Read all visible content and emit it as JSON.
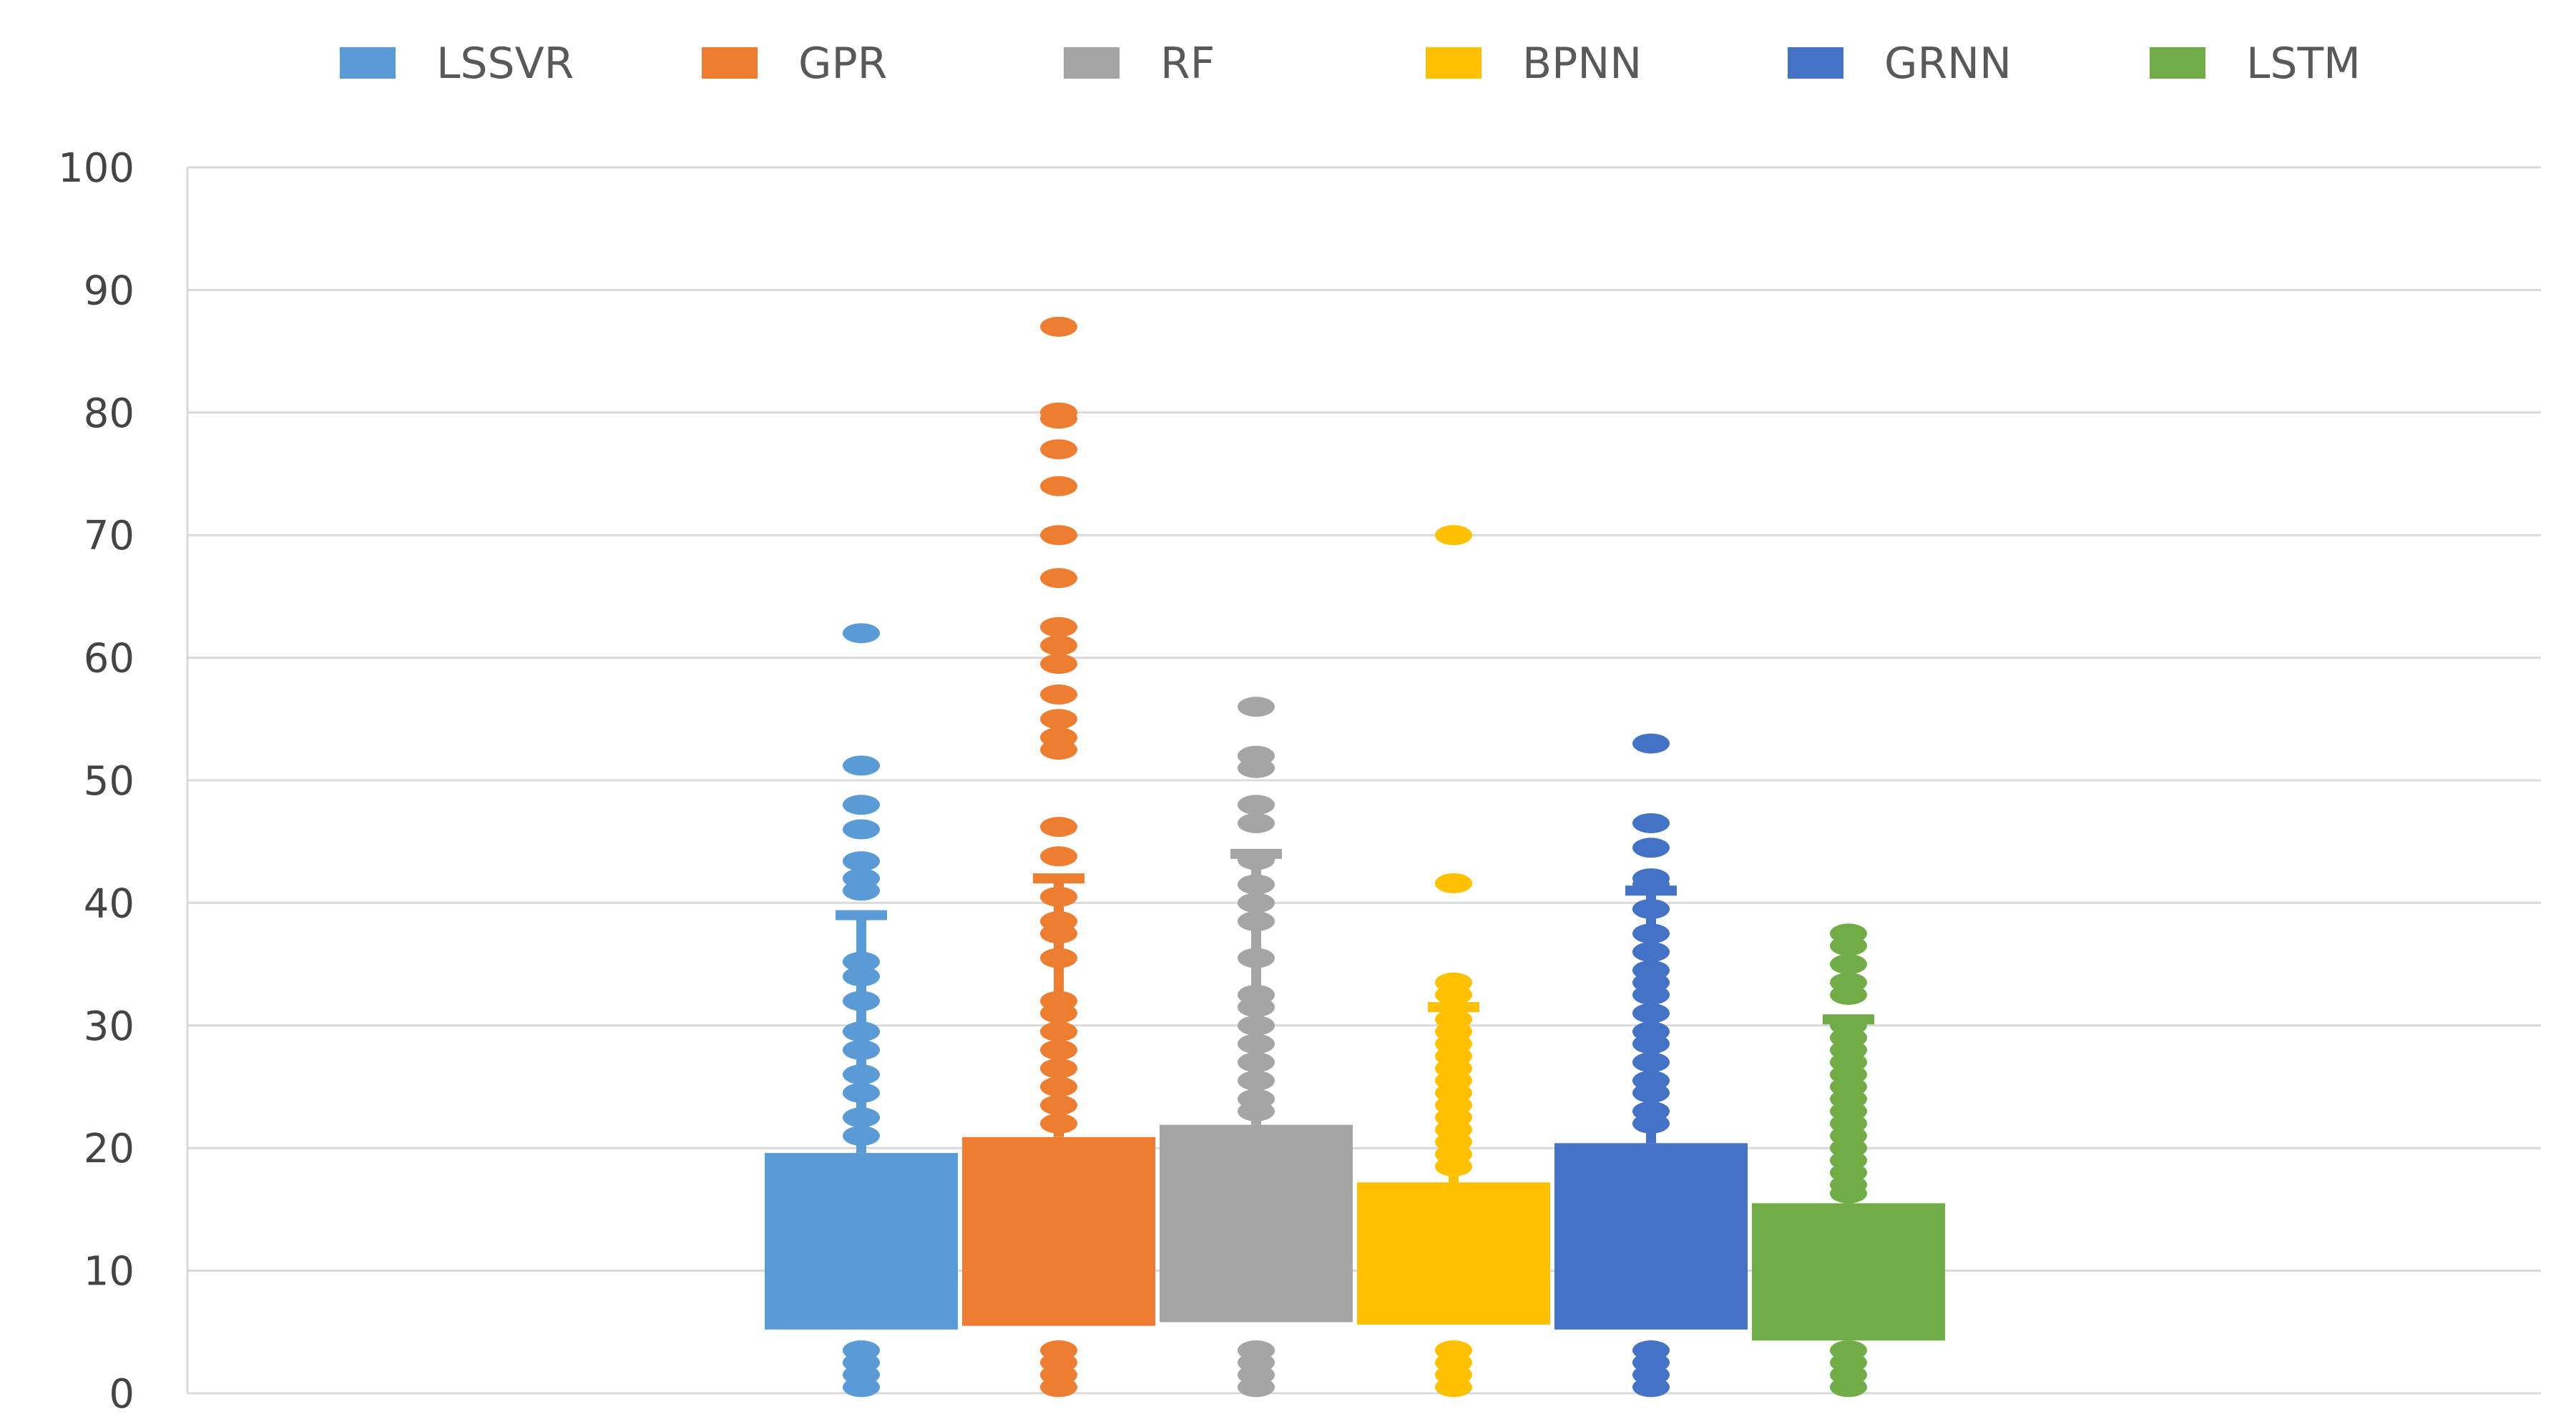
{
  "chart_data": {
    "type": "box",
    "title": "",
    "xlabel": "",
    "ylabel": "",
    "ylim": [
      0,
      100
    ],
    "yticks": [
      0,
      10,
      20,
      30,
      40,
      50,
      60,
      70,
      80,
      90,
      100
    ],
    "yticks_text": [
      "0",
      "10",
      "20",
      "30",
      "40",
      "50",
      "60",
      "70",
      "80",
      "90",
      "100"
    ],
    "grid": true,
    "legend_position": "top",
    "series": [
      {
        "name": "LSSVR",
        "color": "#5B9BD5",
        "q1": 5.2,
        "q3": 19.6,
        "whisker_high": 39,
        "outliers": [
          62,
          51.2,
          48,
          46,
          43.4,
          42,
          41,
          35.2,
          34,
          32,
          29.5,
          28,
          26,
          24.5,
          22.5,
          21,
          3.5,
          2.5,
          1.5,
          0.5
        ]
      },
      {
        "name": "GPR",
        "color": "#ED7D31",
        "q1": 5.5,
        "q3": 20.9,
        "whisker_high": 42,
        "outliers": [
          87,
          80,
          79.5,
          77,
          74,
          70,
          66.5,
          62.5,
          61,
          59.5,
          57,
          55,
          53.5,
          52.5,
          46.2,
          43.8,
          40.5,
          38.5,
          37.5,
          35.5,
          32,
          31,
          29.5,
          28,
          26.5,
          25,
          23.5,
          22,
          3.5,
          2.5,
          1.5,
          0.5
        ]
      },
      {
        "name": "RF",
        "color": "#A5A5A5",
        "q1": 5.8,
        "q3": 21.9,
        "whisker_high": 44,
        "outliers": [
          56,
          52,
          51,
          48,
          46.5,
          43.5,
          41.5,
          40,
          38.5,
          35.5,
          32.5,
          31.5,
          30,
          28.5,
          27,
          25.5,
          24,
          23,
          3.5,
          2.5,
          1.5,
          0.5
        ]
      },
      {
        "name": "BPNN",
        "color": "#FFC000",
        "q1": 5.6,
        "q3": 17.2,
        "whisker_high": 31.5,
        "outliers": [
          70,
          41.6,
          33.5,
          32.5,
          30.5,
          29.5,
          28.5,
          27.5,
          26.5,
          25.5,
          24.5,
          23.5,
          22.5,
          21.5,
          20.5,
          19.5,
          18.5,
          3.5,
          2.5,
          1.5,
          0.5
        ]
      },
      {
        "name": "GRNN",
        "color": "#4472C4",
        "q1": 5.2,
        "q3": 20.4,
        "whisker_high": 41,
        "outliers": [
          53,
          46.5,
          44.5,
          42,
          41.5,
          39.5,
          37.5,
          36,
          34.5,
          33.5,
          32.5,
          31,
          29.5,
          28.5,
          27,
          25.5,
          24.5,
          23,
          22,
          3.5,
          2.5,
          1.5,
          0.5
        ]
      },
      {
        "name": "LSTM",
        "color": "#70AD47",
        "q1": 4.3,
        "q3": 15.5,
        "whisker_high": 30.5,
        "outliers": [
          37.5,
          36.5,
          35,
          33.5,
          32.5,
          30,
          29,
          28,
          27,
          26,
          25,
          24,
          23,
          22,
          21,
          20,
          19,
          18,
          17,
          16.3,
          3.5,
          2.5,
          1.5,
          0.5
        ]
      }
    ]
  }
}
